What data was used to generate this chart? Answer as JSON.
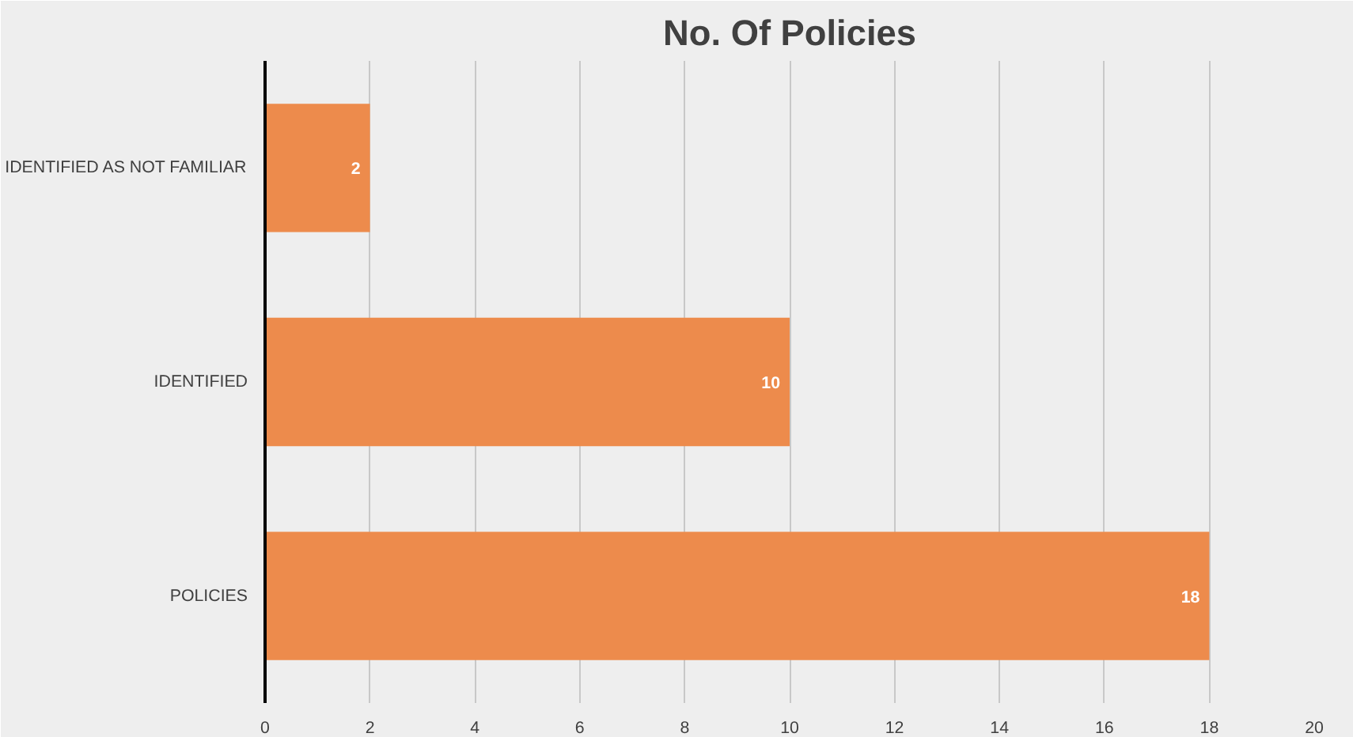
{
  "chart_data": {
    "type": "bar",
    "orientation": "horizontal",
    "title": "No. Of Policies",
    "categories": [
      "IDENTIFIED AS NOT FAMILIAR",
      "IDENTIFIED",
      "POLICIES"
    ],
    "values": [
      2,
      10,
      18
    ],
    "color": "#ed8b4c",
    "xlim": [
      0,
      20
    ],
    "xticks": [
      0,
      2,
      4,
      6,
      8,
      10,
      12,
      14,
      16,
      18,
      20
    ],
    "grid": "x",
    "data_labels": true
  }
}
